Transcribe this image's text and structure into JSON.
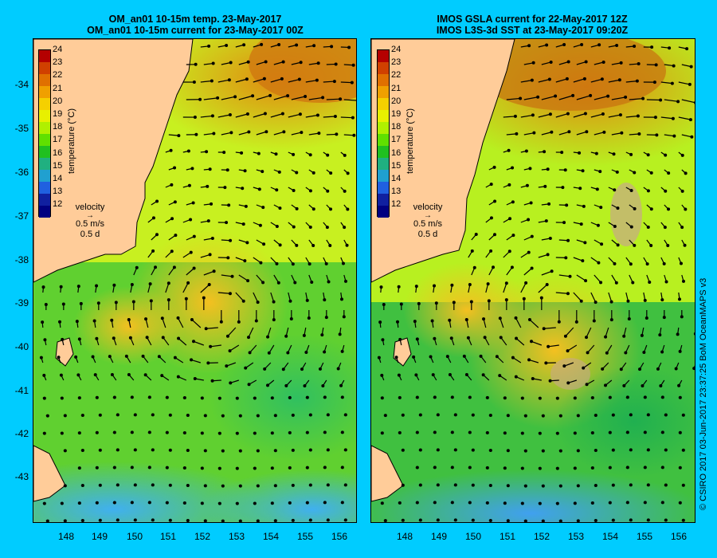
{
  "left": {
    "title_line1": "OM_an01 10-15m temp. 23-May-2017",
    "title_line2": "OM_an01 10-15m current for 23-May-2017 00Z"
  },
  "right": {
    "title_line1": "IMOS GSLA current for 22-May-2017 12Z",
    "title_line2": "IMOS L3S-3d SST at 23-May-2017 09:20Z"
  },
  "y_ticks": [
    "-34",
    "-35",
    "-36",
    "-37",
    "-38",
    "-39",
    "-40",
    "-41",
    "-42",
    "-43"
  ],
  "x_ticks": [
    "148",
    "149",
    "150",
    "151",
    "152",
    "153",
    "154",
    "155",
    "156"
  ],
  "colorbar": {
    "title": "temperature (°C)",
    "labels": [
      "24",
      "23",
      "22",
      "21",
      "20",
      "19",
      "18",
      "17",
      "16",
      "15",
      "14",
      "13",
      "12"
    ],
    "colors": [
      "#b40000",
      "#d04000",
      "#e07000",
      "#f0a000",
      "#f5d000",
      "#e8f000",
      "#b0f000",
      "#60e000",
      "#20c020",
      "#20b080",
      "#20a0d0",
      "#2060e0",
      "#1020a0",
      "#000080"
    ]
  },
  "legend": {
    "title": "velocity",
    "speed": "0.5 m/s",
    "duration": "0.5 d"
  },
  "credit": "© CSIRO 2017  03-Jun-2017 23:37:25 BoM OceanMAPS v3",
  "colors": {
    "background": "#00ccff",
    "land": "#ffcc99",
    "warm": "#e08a10",
    "mid": "#f0e020",
    "cool": "#30b040",
    "cold": "#40b0e0"
  }
}
